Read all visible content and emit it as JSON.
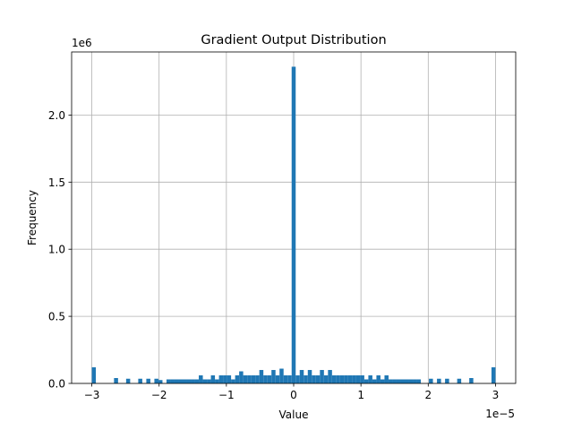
{
  "chart_data": {
    "type": "bar",
    "title": "Gradient Output Distribution",
    "xlabel": "Value",
    "ylabel": "Frequency",
    "x_offset_label": "1e−5",
    "y_offset_label": "1e6",
    "xlim": [
      -3.3,
      3.3
    ],
    "ylim": [
      0,
      2.47
    ],
    "grid": true,
    "bar_width": 0.06,
    "bar_color": "#1f77b4",
    "x_ticks": [
      {
        "value": -3,
        "label": "−3"
      },
      {
        "value": -2,
        "label": "−2"
      },
      {
        "value": -1,
        "label": "−1"
      },
      {
        "value": 0,
        "label": "0"
      },
      {
        "value": 1,
        "label": "1"
      },
      {
        "value": 2,
        "label": "2"
      },
      {
        "value": 3,
        "label": "3"
      }
    ],
    "y_ticks": [
      {
        "value": 0,
        "label": "0.0"
      },
      {
        "value": 0.5,
        "label": "0.5"
      },
      {
        "value": 1.0,
        "label": "1.0"
      },
      {
        "value": 1.5,
        "label": "1.5"
      },
      {
        "value": 2.0,
        "label": "2.0"
      }
    ],
    "bins": [
      {
        "x": -2.97,
        "y": 0.12
      },
      {
        "x": -2.64,
        "y": 0.04
      },
      {
        "x": -2.46,
        "y": 0.035
      },
      {
        "x": -2.28,
        "y": 0.035
      },
      {
        "x": -2.16,
        "y": 0.035
      },
      {
        "x": -2.04,
        "y": 0.035
      },
      {
        "x": -1.98,
        "y": 0.025
      },
      {
        "x": -1.86,
        "y": 0.03
      },
      {
        "x": -1.8,
        "y": 0.03
      },
      {
        "x": -1.74,
        "y": 0.03
      },
      {
        "x": -1.68,
        "y": 0.03
      },
      {
        "x": -1.62,
        "y": 0.03
      },
      {
        "x": -1.56,
        "y": 0.03
      },
      {
        "x": -1.5,
        "y": 0.03
      },
      {
        "x": -1.44,
        "y": 0.03
      },
      {
        "x": -1.38,
        "y": 0.06
      },
      {
        "x": -1.32,
        "y": 0.03
      },
      {
        "x": -1.26,
        "y": 0.03
      },
      {
        "x": -1.2,
        "y": 0.06
      },
      {
        "x": -1.14,
        "y": 0.03
      },
      {
        "x": -1.08,
        "y": 0.06
      },
      {
        "x": -1.02,
        "y": 0.06
      },
      {
        "x": -0.96,
        "y": 0.06
      },
      {
        "x": -0.9,
        "y": 0.03
      },
      {
        "x": -0.84,
        "y": 0.06
      },
      {
        "x": -0.78,
        "y": 0.09
      },
      {
        "x": -0.72,
        "y": 0.06
      },
      {
        "x": -0.66,
        "y": 0.06
      },
      {
        "x": -0.6,
        "y": 0.06
      },
      {
        "x": -0.54,
        "y": 0.06
      },
      {
        "x": -0.48,
        "y": 0.1
      },
      {
        "x": -0.42,
        "y": 0.06
      },
      {
        "x": -0.36,
        "y": 0.06
      },
      {
        "x": -0.3,
        "y": 0.1
      },
      {
        "x": -0.24,
        "y": 0.06
      },
      {
        "x": -0.18,
        "y": 0.11
      },
      {
        "x": -0.12,
        "y": 0.06
      },
      {
        "x": -0.06,
        "y": 0.06
      },
      {
        "x": 0.0,
        "y": 2.36
      },
      {
        "x": 0.06,
        "y": 0.06
      },
      {
        "x": 0.12,
        "y": 0.1
      },
      {
        "x": 0.18,
        "y": 0.06
      },
      {
        "x": 0.24,
        "y": 0.1
      },
      {
        "x": 0.3,
        "y": 0.06
      },
      {
        "x": 0.36,
        "y": 0.06
      },
      {
        "x": 0.42,
        "y": 0.1
      },
      {
        "x": 0.48,
        "y": 0.06
      },
      {
        "x": 0.54,
        "y": 0.1
      },
      {
        "x": 0.6,
        "y": 0.06
      },
      {
        "x": 0.66,
        "y": 0.06
      },
      {
        "x": 0.72,
        "y": 0.06
      },
      {
        "x": 0.78,
        "y": 0.06
      },
      {
        "x": 0.84,
        "y": 0.06
      },
      {
        "x": 0.9,
        "y": 0.06
      },
      {
        "x": 0.96,
        "y": 0.06
      },
      {
        "x": 1.02,
        "y": 0.06
      },
      {
        "x": 1.08,
        "y": 0.03
      },
      {
        "x": 1.14,
        "y": 0.06
      },
      {
        "x": 1.2,
        "y": 0.03
      },
      {
        "x": 1.26,
        "y": 0.06
      },
      {
        "x": 1.32,
        "y": 0.03
      },
      {
        "x": 1.38,
        "y": 0.06
      },
      {
        "x": 1.44,
        "y": 0.03
      },
      {
        "x": 1.5,
        "y": 0.03
      },
      {
        "x": 1.56,
        "y": 0.03
      },
      {
        "x": 1.62,
        "y": 0.03
      },
      {
        "x": 1.68,
        "y": 0.03
      },
      {
        "x": 1.74,
        "y": 0.03
      },
      {
        "x": 1.8,
        "y": 0.03
      },
      {
        "x": 1.86,
        "y": 0.03
      },
      {
        "x": 2.04,
        "y": 0.035
      },
      {
        "x": 2.16,
        "y": 0.035
      },
      {
        "x": 2.28,
        "y": 0.035
      },
      {
        "x": 2.46,
        "y": 0.035
      },
      {
        "x": 2.64,
        "y": 0.04
      },
      {
        "x": 2.97,
        "y": 0.12
      }
    ]
  }
}
